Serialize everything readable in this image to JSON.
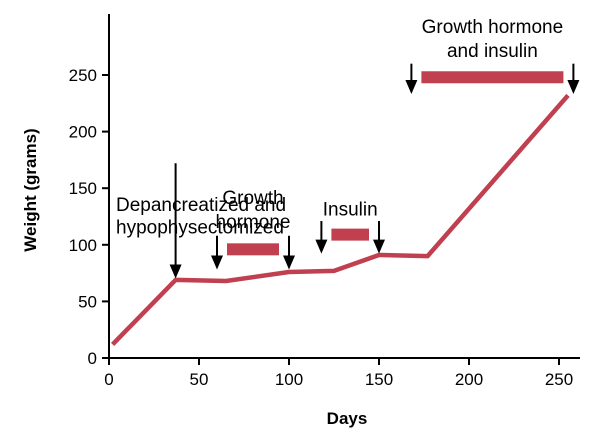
{
  "chart_data": {
    "type": "line",
    "title": "",
    "xlabel": "Days",
    "ylabel": "Weight (grams)",
    "xlim": [
      0,
      260
    ],
    "ylim": [
      0,
      300
    ],
    "x_ticks": [
      0,
      50,
      100,
      150,
      200,
      250
    ],
    "y_ticks": [
      0,
      50,
      100,
      150,
      200,
      250
    ],
    "grid": false,
    "line_color": "#c0404f",
    "series": [
      {
        "x": [
          2,
          37,
          65,
          100,
          125,
          150,
          177,
          255
        ],
        "y": [
          12,
          69,
          68,
          76,
          77,
          91,
          90,
          232
        ]
      }
    ],
    "annotations": [
      {
        "lines": [
          "Depancreatized and",
          "hypophysectomized"
        ],
        "arrow_x": 37,
        "arrow_y_top": 172,
        "arrow_y_bottom": 72,
        "text_y": [
          130,
          110
        ]
      },
      {
        "lines": [
          "Growth",
          "hormone"
        ],
        "start_x": 60,
        "end_x": 100,
        "bar_y": 96,
        "arrow_y_top": 108,
        "arrow_y_bottom": 80,
        "text_x": 80,
        "text_y": [
          136,
          115
        ]
      },
      {
        "lines": [
          "Insulin"
        ],
        "start_x": 118,
        "end_x": 150,
        "bar_y": 109,
        "arrow_y_top": 121,
        "arrow_y_bottom": 94,
        "text_x": 134,
        "text_y": [
          126
        ]
      },
      {
        "lines": [
          "Growth hormone",
          "and insulin"
        ],
        "start_x": 168,
        "end_x": 258,
        "bar_y": 248,
        "arrow_y_top": 260,
        "arrow_y_bottom": 235,
        "text_x": 213,
        "text_y": [
          287,
          266
        ]
      }
    ]
  }
}
